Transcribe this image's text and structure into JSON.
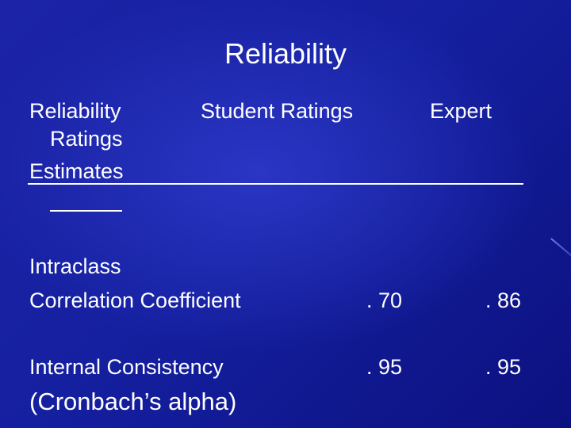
{
  "slide": {
    "title": "Reliability"
  },
  "table": {
    "header": {
      "col1_line1": "Reliability",
      "col1_line2": "Ratings",
      "col1_line3": "Estimates",
      "col2": "Student Ratings",
      "col3": "Expert"
    },
    "rows": [
      {
        "label_line1": "Intraclass",
        "label_line2": "Correlation Coefficient",
        "student": ". 70",
        "expert": ". 86"
      },
      {
        "label_line1": "Internal Consistency",
        "label_line2": "(Cronbach’s alpha)",
        "student": ". 95",
        "expert": ". 95"
      }
    ]
  }
}
